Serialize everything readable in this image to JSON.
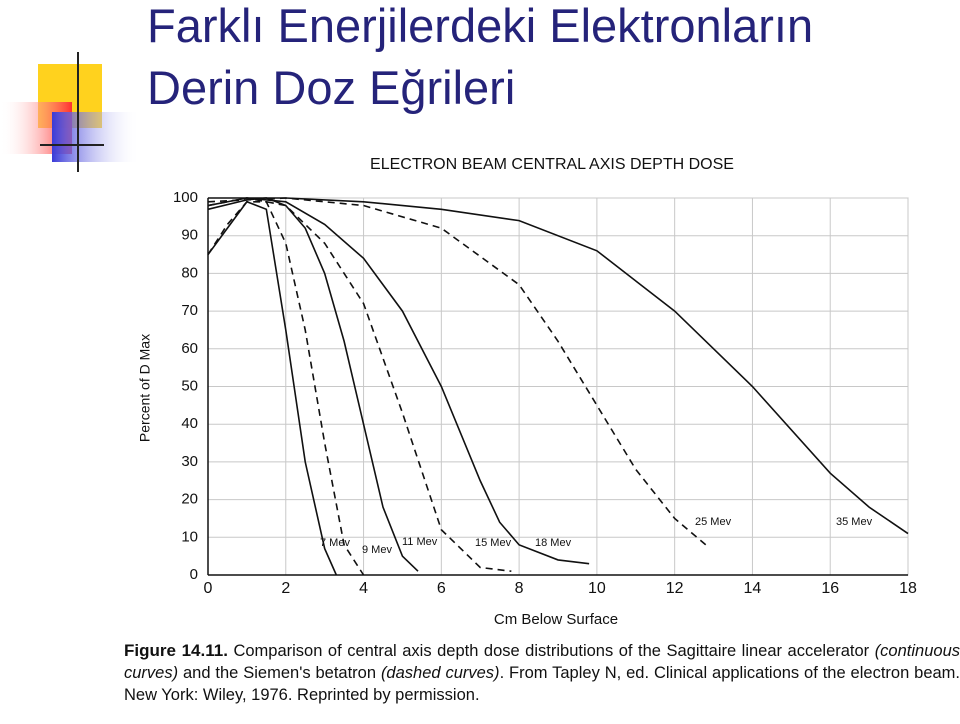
{
  "slide_title": [
    "Farklı Enerjilerdeki Elektronların",
    "Derin Doz Eğrileri"
  ],
  "chart_data": {
    "type": "line",
    "title": "ELECTRON BEAM CENTRAL AXIS DEPTH DOSE",
    "x_label": "Cm Below Surface",
    "y_label": "Percent of D Max",
    "xlim": [
      0,
      18
    ],
    "xticks": [
      0,
      2,
      4,
      6,
      8,
      10,
      12,
      14,
      16,
      18
    ],
    "ylim": [
      0,
      100
    ],
    "yticks": [
      0,
      10,
      20,
      30,
      40,
      50,
      60,
      70,
      80,
      90,
      100
    ],
    "grid": true,
    "series": [
      {
        "name": "7 Mev",
        "color": "#111111",
        "dashed": false,
        "x": [
          0,
          0.5,
          1,
          1.5,
          2,
          2.5,
          3,
          3.3
        ],
        "values": [
          85,
          92,
          99,
          97,
          65,
          30,
          7,
          0
        ]
      },
      {
        "name": "9 Mev",
        "color": "#111111",
        "dashed": true,
        "x": [
          0,
          0.5,
          1,
          1.5,
          2,
          2.5,
          3,
          3.5,
          4
        ],
        "values": [
          85,
          93,
          99,
          99,
          88,
          65,
          35,
          8,
          0
        ]
      },
      {
        "name": "11 Mev",
        "color": "#111111",
        "dashed": false,
        "x": [
          0,
          1,
          1.5,
          2,
          2.5,
          3,
          3.5,
          4,
          4.5,
          5,
          5.4
        ],
        "values": [
          97,
          99.5,
          100,
          98,
          92,
          80,
          62,
          40,
          18,
          5,
          1
        ]
      },
      {
        "name": "15 Mev",
        "color": "#111111",
        "dashed": true,
        "x": [
          0,
          1,
          2,
          3,
          4,
          5,
          6,
          7,
          7.8
        ],
        "values": [
          98,
          100,
          98,
          88,
          72,
          43,
          12,
          2,
          1
        ]
      },
      {
        "name": "18 Mev",
        "color": "#111111",
        "dashed": false,
        "x": [
          0,
          1,
          2,
          3,
          4,
          5,
          6,
          7,
          7.5,
          8,
          9,
          9.8
        ],
        "values": [
          98,
          100,
          99,
          93,
          84,
          70,
          50,
          25,
          14,
          8,
          4,
          3
        ]
      },
      {
        "name": "25 Mev",
        "color": "#111111",
        "dashed": true,
        "x": [
          0,
          2,
          4,
          6,
          8,
          9,
          10,
          11,
          12,
          12.8
        ],
        "values": [
          99,
          100,
          98,
          92,
          77,
          62,
          45,
          28,
          15,
          8
        ]
      },
      {
        "name": "35 Mev",
        "color": "#111111",
        "dashed": false,
        "x": [
          0,
          2,
          4,
          6,
          8,
          10,
          12,
          14,
          16,
          17,
          18
        ],
        "values": [
          100,
          100,
          99,
          97,
          94,
          86,
          70,
          50,
          27,
          18,
          11
        ]
      }
    ]
  },
  "caption": {
    "label": "Figure 14.11.",
    "parts": [
      {
        "text": "Comparison of central axis depth dose distributions of the Sagittaire linear accelerator ",
        "italic": false
      },
      {
        "text": "(continuous curves)",
        "italic": true
      },
      {
        "text": " and the Siemen's betatron ",
        "italic": false
      },
      {
        "text": "(dashed curves)",
        "italic": true
      },
      {
        "text": ". From Tapley N, ed. Clinical applications of the electron beam. New York: Wiley, 1976. Reprinted by permission.",
        "italic": false
      }
    ]
  }
}
